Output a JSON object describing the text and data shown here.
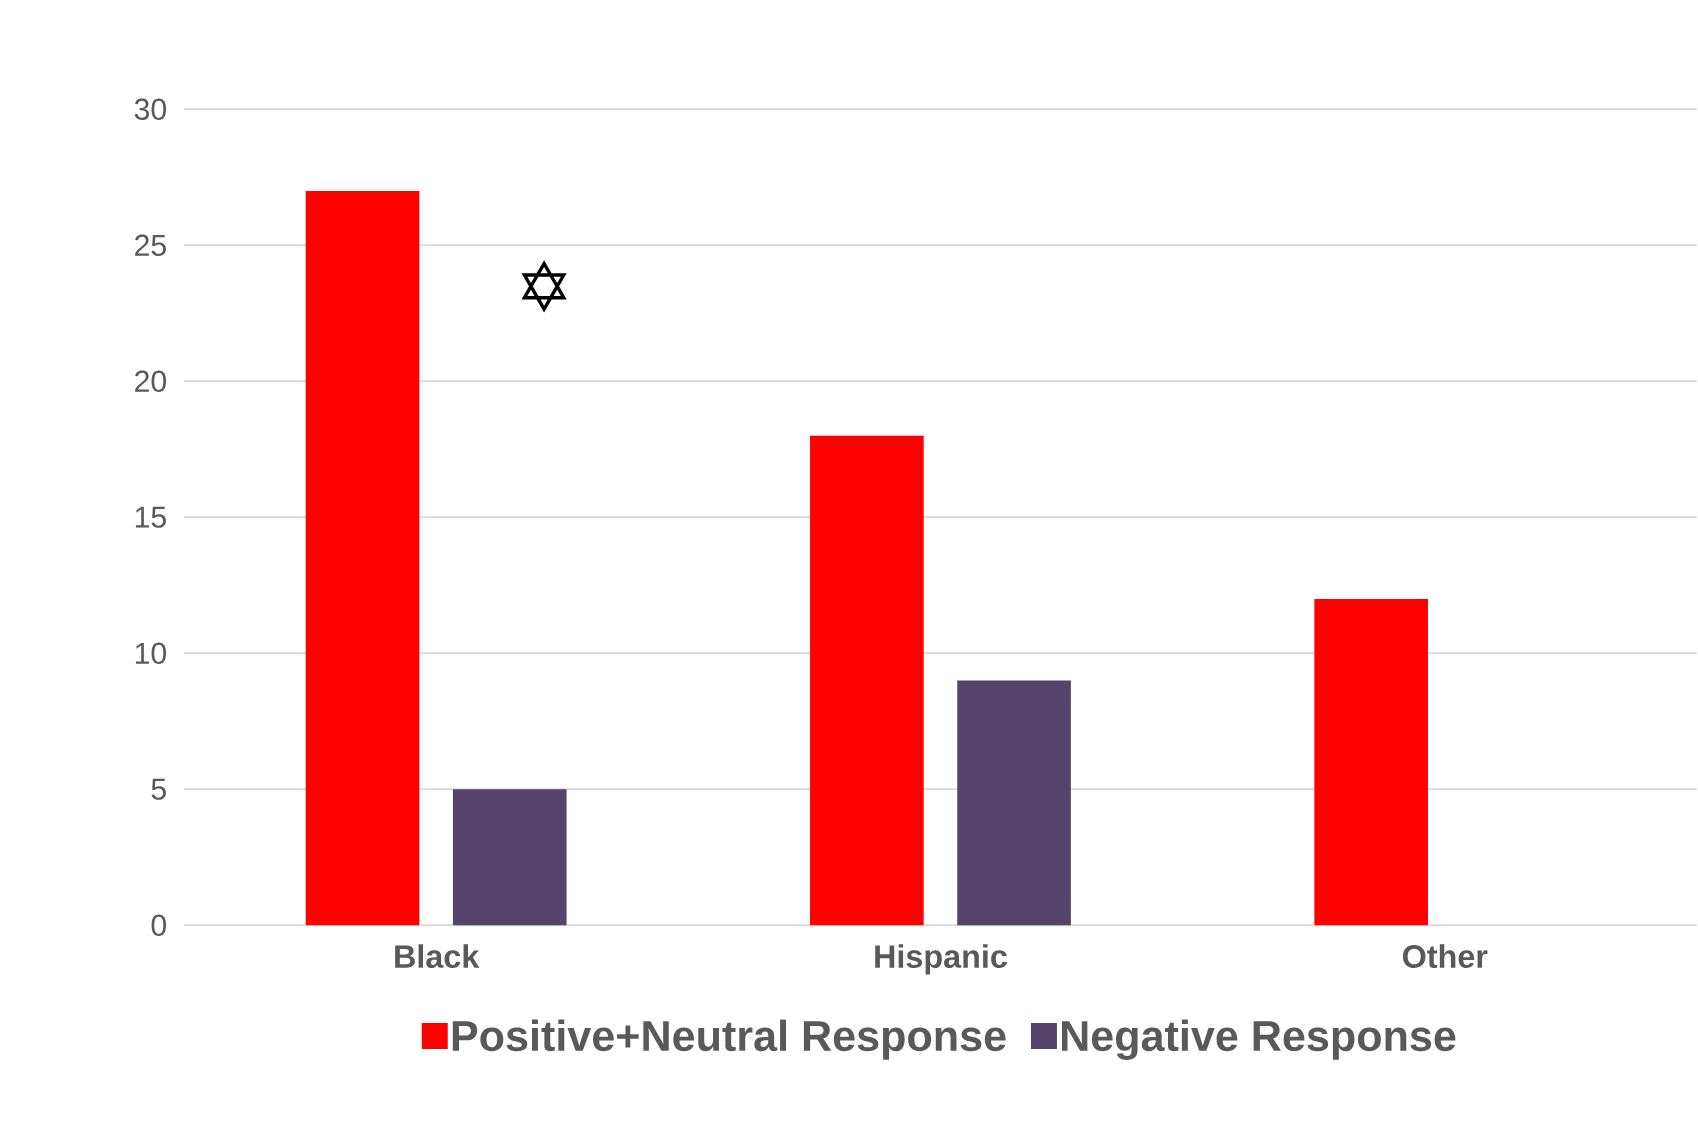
{
  "chart_data": {
    "type": "bar",
    "categories": [
      "Black",
      "Hispanic",
      "Other"
    ],
    "series": [
      {
        "name": "Positive+Neutral Response",
        "color": "#ff0000",
        "values": [
          27,
          18,
          12
        ]
      },
      {
        "name": "Negative Response",
        "color": "#554469",
        "values": [
          5,
          9,
          0
        ]
      }
    ],
    "ylim": [
      0,
      30
    ],
    "yticks": [
      0,
      5,
      10,
      15,
      20,
      25,
      30
    ],
    "grid": "y",
    "legend": "bottom",
    "annotations": [
      "✡"
    ]
  }
}
